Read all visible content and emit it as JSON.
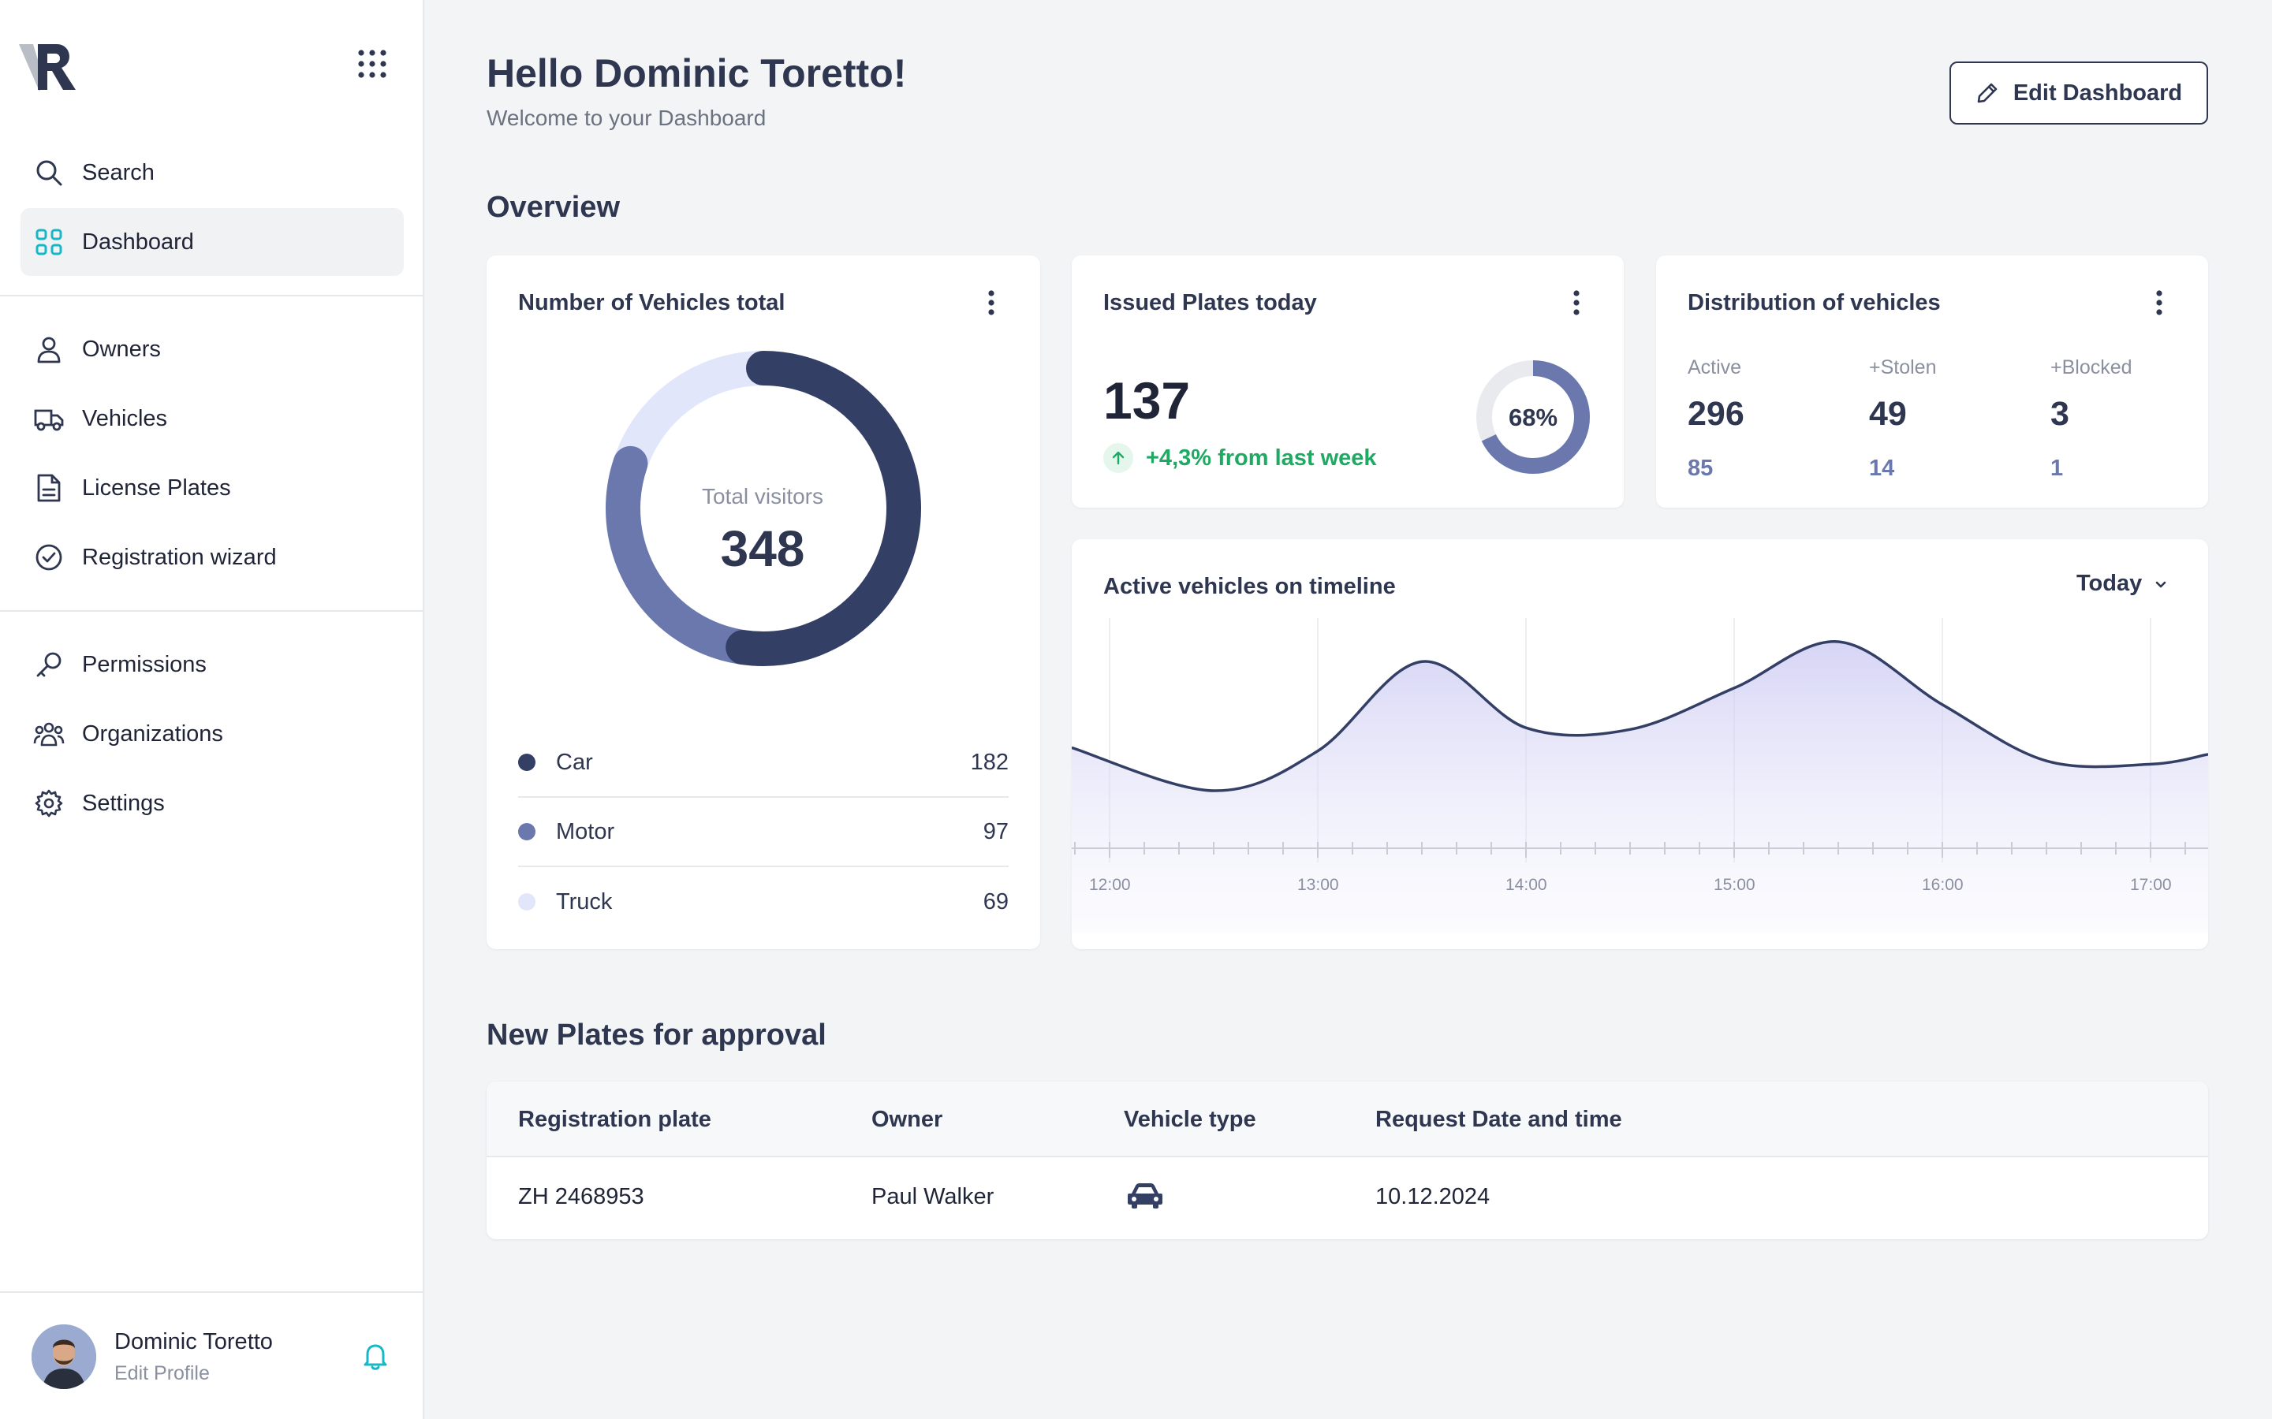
{
  "colors": {
    "primary": "#343f66",
    "secondary": "#6a78ae",
    "light": "#e2e6fa",
    "accent_teal": "#16b8c8",
    "positive": "#1faa63"
  },
  "sidebar": {
    "logo": "VR",
    "apps_icon": "grid-icon",
    "top_items": [
      {
        "label": "Search",
        "icon": "search-icon"
      },
      {
        "label": "Dashboard",
        "icon": "dashboard-icon",
        "active": true
      }
    ],
    "main_items": [
      {
        "label": "Owners",
        "icon": "user-icon"
      },
      {
        "label": "Vehicles",
        "icon": "truck-icon"
      },
      {
        "label": "License Plates",
        "icon": "document-icon"
      },
      {
        "label": "Registration wizard",
        "icon": "check-circle-icon"
      }
    ],
    "admin_items": [
      {
        "label": "Permissions",
        "icon": "key-icon"
      },
      {
        "label": "Organizations",
        "icon": "users-icon"
      },
      {
        "label": "Settings",
        "icon": "gear-icon"
      }
    ],
    "profile": {
      "name": "Dominic Toretto",
      "edit_label": "Edit Profile"
    }
  },
  "header": {
    "greeting": "Hello Dominic Toretto!",
    "subtitle": "Welcome to your Dashboard",
    "edit_button": "Edit Dashboard"
  },
  "overview": {
    "title": "Overview",
    "vehicles_total": {
      "title": "Number of Vehicles total",
      "center_label": "Total visitors",
      "center_value": "348",
      "items": [
        {
          "name": "Car",
          "value": "182",
          "color": "#343f66"
        },
        {
          "name": "Motor",
          "value": "97",
          "color": "#6a78ae"
        },
        {
          "name": "Truck",
          "value": "69",
          "color": "#e2e6fa"
        }
      ]
    },
    "issued_plates": {
      "title": "Issued Plates today",
      "value": "137",
      "trend": "+4,3% from last week",
      "ring_label": "68%",
      "ring_fraction": 0.68
    },
    "distribution": {
      "title": "Distribution of vehicles",
      "columns": [
        {
          "label": "Active",
          "value": "296",
          "sub": "85"
        },
        {
          "label": "+Stolen",
          "value": "49",
          "sub": "14"
        },
        {
          "label": "+Blocked",
          "value": "3",
          "sub": "1"
        }
      ]
    },
    "timeline": {
      "title": "Active vehicles on timeline",
      "range_label": "Today"
    }
  },
  "chart_data": [
    {
      "type": "pie",
      "title": "Number of Vehicles total",
      "categories": [
        "Car",
        "Motor",
        "Truck"
      ],
      "values": [
        182,
        97,
        69
      ]
    },
    {
      "type": "area",
      "title": "Active vehicles on timeline",
      "x": [
        "12:00",
        "12:30",
        "13:00",
        "13:30",
        "14:00",
        "14:30",
        "15:00",
        "15:30",
        "16:00",
        "16:30",
        "17:00",
        "17:10"
      ],
      "values": [
        36,
        10,
        34,
        88,
        48,
        47,
        72,
        100,
        62,
        28,
        26,
        32
      ],
      "xticks": [
        "12:00",
        "13:00",
        "14:00",
        "15:00",
        "16:00",
        "17:00"
      ],
      "ylim": [
        0,
        100
      ]
    }
  ],
  "approval": {
    "title": "New Plates for approval",
    "columns": [
      "Registration plate",
      "Owner",
      "Vehicle type",
      "Request Date and time"
    ],
    "rows": [
      {
        "plate": "ZH 2468953",
        "owner": "Paul Walker",
        "vehicle_icon": "car-icon",
        "date": "10.12.2024"
      }
    ]
  }
}
